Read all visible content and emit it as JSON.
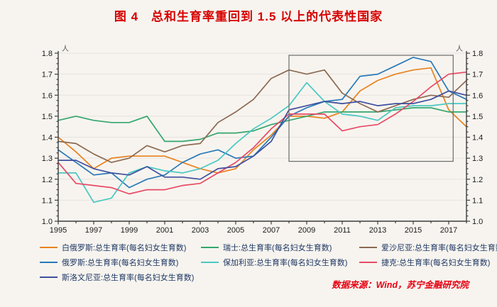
{
  "title": "图 4　总和生育率重回到 1.5 以上的代表性国家",
  "source": "数据来源：Wind，苏宁金融研究院",
  "colors": {
    "title_red": "#d60000",
    "source_red": "#e60012",
    "legend_text": "#1f3864",
    "axis": "#3d3d3d",
    "tick_label": "#1a1a1a",
    "grid": "#e7e4df",
    "background": "#f7f4ef",
    "highlight_box": "#6b6b6b"
  },
  "chart_data": {
    "type": "line",
    "unit": "人",
    "x": [
      1995,
      1996,
      1997,
      1998,
      1999,
      2000,
      2001,
      2002,
      2003,
      2004,
      2005,
      2006,
      2007,
      2008,
      2009,
      2010,
      2011,
      2012,
      2013,
      2014,
      2015,
      2016,
      2017,
      2018
    ],
    "x_tick_labels": [
      "1995",
      "1997",
      "1999",
      "2001",
      "2003",
      "2005",
      "2007",
      "2009",
      "2011",
      "2013",
      "2015",
      "2017"
    ],
    "xlim": [
      1995,
      2018
    ],
    "ylim": [
      1.0,
      1.8
    ],
    "y_ticks": [
      1.0,
      1.1,
      1.2,
      1.3,
      1.4,
      1.5,
      1.6,
      1.7,
      1.8
    ],
    "grid": true,
    "legend_position": "bottom",
    "highlight_box": {
      "x0": 2008,
      "x1": 2017.25,
      "y0": 1.285,
      "y1": 1.79
    },
    "series": [
      {
        "name": "白俄罗斯:总生育率(每名妇女生育数)",
        "color": "#e8821f",
        "values": [
          1.4,
          1.33,
          1.25,
          1.3,
          1.31,
          1.31,
          1.31,
          1.28,
          1.25,
          1.23,
          1.25,
          1.34,
          1.41,
          1.5,
          1.5,
          1.49,
          1.52,
          1.62,
          1.67,
          1.7,
          1.72,
          1.73,
          1.53,
          1.45
        ]
      },
      {
        "name": "瑞士:总生育率(每名妇女生育数)",
        "color": "#35a66d",
        "values": [
          1.48,
          1.5,
          1.48,
          1.47,
          1.47,
          1.5,
          1.38,
          1.38,
          1.39,
          1.42,
          1.42,
          1.43,
          1.46,
          1.48,
          1.5,
          1.52,
          1.52,
          1.52,
          1.52,
          1.53,
          1.54,
          1.54,
          1.52,
          1.52
        ]
      },
      {
        "name": "爱沙尼亚:总生育率(每名妇女生育数)",
        "color": "#8c6a52",
        "values": [
          1.38,
          1.37,
          1.32,
          1.28,
          1.3,
          1.36,
          1.33,
          1.36,
          1.37,
          1.47,
          1.52,
          1.58,
          1.68,
          1.72,
          1.7,
          1.72,
          1.61,
          1.56,
          1.52,
          1.55,
          1.58,
          1.6,
          1.59,
          1.67
        ]
      },
      {
        "name": "俄罗斯:总生育率(每名妇女生育数)",
        "color": "#2979b8",
        "values": [
          1.34,
          1.28,
          1.22,
          1.23,
          1.16,
          1.2,
          1.22,
          1.28,
          1.32,
          1.34,
          1.3,
          1.31,
          1.4,
          1.5,
          1.54,
          1.57,
          1.58,
          1.69,
          1.7,
          1.74,
          1.78,
          1.76,
          1.62,
          1.58
        ]
      },
      {
        "name": "保加利亚:总生育率(每名妇女生育数)",
        "color": "#4ac8c2",
        "values": [
          1.23,
          1.23,
          1.09,
          1.11,
          1.23,
          1.26,
          1.24,
          1.23,
          1.25,
          1.29,
          1.37,
          1.44,
          1.49,
          1.55,
          1.66,
          1.57,
          1.51,
          1.5,
          1.48,
          1.54,
          1.55,
          1.55,
          1.56,
          1.56
        ]
      },
      {
        "name": "捷克:总生育率(每名妇女生育数)",
        "color": "#e84a66",
        "values": [
          1.28,
          1.18,
          1.17,
          1.16,
          1.13,
          1.15,
          1.15,
          1.17,
          1.18,
          1.23,
          1.28,
          1.35,
          1.44,
          1.51,
          1.51,
          1.51,
          1.43,
          1.45,
          1.46,
          1.51,
          1.57,
          1.64,
          1.7,
          1.71
        ]
      },
      {
        "name": "斯洛文尼亚:总生育率(每名妇女生育数)",
        "color": "#3f4f9f",
        "values": [
          1.29,
          1.29,
          1.25,
          1.23,
          1.22,
          1.26,
          1.21,
          1.21,
          1.2,
          1.25,
          1.26,
          1.31,
          1.38,
          1.53,
          1.55,
          1.57,
          1.56,
          1.57,
          1.55,
          1.56,
          1.56,
          1.58,
          1.62,
          1.6
        ]
      }
    ]
  }
}
